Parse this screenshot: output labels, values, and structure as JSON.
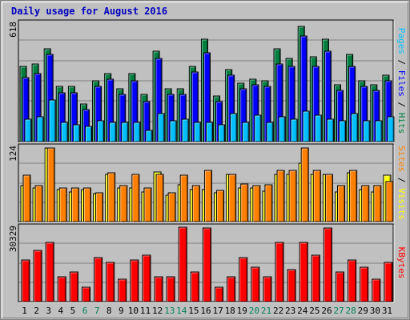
{
  "title": "Daily usage for August 2016",
  "colors": {
    "background": "#c0c0c0",
    "plot_bg": "#c0c0c0",
    "pages": "#00c0ff",
    "files": "#0000ff",
    "hits": "#008040",
    "visits": "#ffff00",
    "sites": "#ff8000",
    "kbytes": "#ff0000",
    "grid": "#808080",
    "title": "#0000c0",
    "weekend_label": "#00805c"
  },
  "chart_data": [
    {
      "type": "bar",
      "panel": "hits-files-pages",
      "y_max_label": "618",
      "ylim": [
        0,
        618
      ],
      "axis_label_parts": [
        "Pages",
        "Files",
        "Hits"
      ],
      "series": [
        {
          "name": "Hits",
          "values": [
            400,
            410,
            490,
            290,
            290,
            200,
            320,
            360,
            280,
            360,
            250,
            480,
            280,
            280,
            400,
            540,
            240,
            380,
            310,
            330,
            320,
            490,
            440,
            610,
            450,
            540,
            300,
            460,
            320,
            300,
            350
          ]
        },
        {
          "name": "Files",
          "values": [
            340,
            360,
            460,
            260,
            260,
            170,
            290,
            330,
            250,
            320,
            210,
            440,
            250,
            250,
            370,
            470,
            210,
            350,
            280,
            300,
            290,
            410,
            400,
            560,
            400,
            480,
            270,
            400,
            290,
            270,
            320
          ]
        },
        {
          "name": "Pages",
          "values": [
            120,
            130,
            220,
            100,
            90,
            80,
            110,
            100,
            100,
            100,
            60,
            150,
            110,
            120,
            100,
            100,
            90,
            150,
            100,
            140,
            100,
            130,
            120,
            160,
            140,
            120,
            110,
            150,
            110,
            110,
            130
          ]
        }
      ],
      "categories": [
        "1",
        "2",
        "3",
        "4",
        "5",
        "6",
        "7",
        "8",
        "9",
        "10",
        "11",
        "12",
        "13",
        "14",
        "15",
        "16",
        "17",
        "18",
        "19",
        "20",
        "21",
        "22",
        "23",
        "24",
        "25",
        "26",
        "27",
        "28",
        "29",
        "30",
        "31"
      ]
    },
    {
      "type": "bar",
      "panel": "visits-sites",
      "y_max_label": "124",
      "ylim": [
        0,
        124
      ],
      "axis_label_parts": [
        "Sites",
        "Visits"
      ],
      "series": [
        {
          "name": "Visits",
          "values": [
            60,
            56,
            124,
            54,
            50,
            54,
            47,
            80,
            56,
            56,
            50,
            84,
            44,
            62,
            54,
            54,
            48,
            80,
            56,
            56,
            51,
            80,
            80,
            98,
            80,
            80,
            50,
            82,
            54,
            50,
            78
          ]
        },
        {
          "name": "Sites",
          "values": [
            78,
            60,
            124,
            56,
            56,
            56,
            48,
            82,
            60,
            80,
            56,
            80,
            48,
            78,
            60,
            86,
            52,
            80,
            64,
            60,
            62,
            86,
            86,
            124,
            86,
            80,
            60,
            86,
            60,
            60,
            68
          ]
        }
      ],
      "categories": [
        "1",
        "2",
        "3",
        "4",
        "5",
        "6",
        "7",
        "8",
        "9",
        "10",
        "11",
        "12",
        "13",
        "14",
        "15",
        "16",
        "17",
        "18",
        "19",
        "20",
        "21",
        "22",
        "23",
        "24",
        "25",
        "26",
        "27",
        "28",
        "29",
        "30",
        "31"
      ]
    },
    {
      "type": "bar",
      "panel": "kbytes",
      "y_max_label": "30329",
      "ylim": [
        0,
        30329
      ],
      "axis_label_parts": [
        "KBytes"
      ],
      "series": [
        {
          "name": "KBytes",
          "values": [
            17000,
            21000,
            24000,
            10000,
            12000,
            6000,
            18000,
            16000,
            9000,
            17000,
            19000,
            10000,
            10000,
            30329,
            12000,
            30000,
            6000,
            10000,
            18000,
            14000,
            10000,
            24000,
            13000,
            24000,
            19000,
            30000,
            12000,
            17000,
            14000,
            9000,
            16000
          ]
        }
      ],
      "categories": [
        "1",
        "2",
        "3",
        "4",
        "5",
        "6",
        "7",
        "8",
        "9",
        "10",
        "11",
        "12",
        "13",
        "14",
        "15",
        "16",
        "17",
        "18",
        "19",
        "20",
        "21",
        "22",
        "23",
        "24",
        "25",
        "26",
        "27",
        "28",
        "29",
        "30",
        "31"
      ]
    }
  ],
  "x_labels": [
    "1",
    "2",
    "3",
    "4",
    "5",
    "6",
    "7",
    "8",
    "9",
    "10",
    "11",
    "12",
    "13",
    "14",
    "15",
    "16",
    "17",
    "18",
    "19",
    "20",
    "21",
    "22",
    "23",
    "24",
    "25",
    "26",
    "27",
    "28",
    "29",
    "30",
    "31"
  ],
  "weekend_days": [
    "6",
    "7",
    "13",
    "14",
    "20",
    "21",
    "27",
    "28"
  ]
}
